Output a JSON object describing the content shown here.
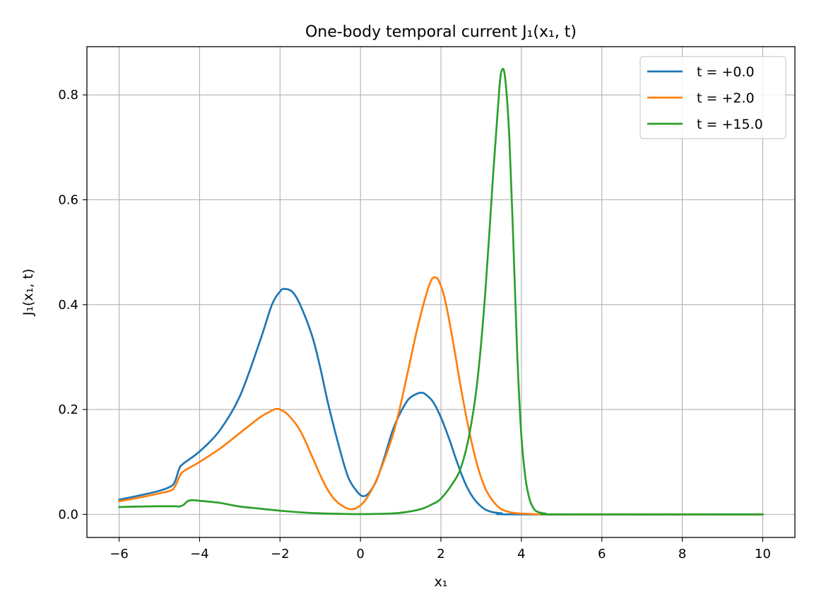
{
  "chart_data": {
    "type": "line",
    "title": "One-body temporal current J₁(x₁, t)",
    "xlabel": "x₁",
    "ylabel": "J₁(x₁, t)",
    "xlim": [
      -6.8,
      10.8
    ],
    "ylim": [
      -0.044,
      0.892
    ],
    "xticks": [
      -6,
      -4,
      -2,
      0,
      2,
      4,
      6,
      8,
      10
    ],
    "xtick_labels": [
      "−6",
      "−4",
      "−2",
      "0",
      "2",
      "4",
      "6",
      "8",
      "10"
    ],
    "yticks": [
      0.0,
      0.2,
      0.4,
      0.6,
      0.8
    ],
    "ytick_labels": [
      "0.0",
      "0.2",
      "0.4",
      "0.6",
      "0.8"
    ],
    "grid": true,
    "legend_position": "top-right",
    "series": [
      {
        "name": "t = +0.0",
        "color": "#1f77b4",
        "points": [
          [
            -6.0,
            0.028
          ],
          [
            -5.5,
            0.036
          ],
          [
            -5.0,
            0.045
          ],
          [
            -4.7,
            0.054
          ],
          [
            -4.6,
            0.065
          ],
          [
            -4.5,
            0.088
          ],
          [
            -4.4,
            0.097
          ],
          [
            -4.0,
            0.12
          ],
          [
            -3.5,
            0.16
          ],
          [
            -3.0,
            0.225
          ],
          [
            -2.5,
            0.33
          ],
          [
            -2.2,
            0.4
          ],
          [
            -2.0,
            0.425
          ],
          [
            -1.9,
            0.43
          ],
          [
            -1.7,
            0.425
          ],
          [
            -1.5,
            0.4
          ],
          [
            -1.2,
            0.34
          ],
          [
            -1.0,
            0.28
          ],
          [
            -0.8,
            0.21
          ],
          [
            -0.5,
            0.12
          ],
          [
            -0.3,
            0.07
          ],
          [
            -0.1,
            0.045
          ],
          [
            0.05,
            0.035
          ],
          [
            0.2,
            0.04
          ],
          [
            0.4,
            0.065
          ],
          [
            0.6,
            0.11
          ],
          [
            0.8,
            0.16
          ],
          [
            1.0,
            0.195
          ],
          [
            1.2,
            0.22
          ],
          [
            1.4,
            0.23
          ],
          [
            1.5,
            0.232
          ],
          [
            1.6,
            0.23
          ],
          [
            1.8,
            0.215
          ],
          [
            2.0,
            0.185
          ],
          [
            2.2,
            0.145
          ],
          [
            2.4,
            0.1
          ],
          [
            2.6,
            0.06
          ],
          [
            2.8,
            0.032
          ],
          [
            3.0,
            0.015
          ],
          [
            3.2,
            0.006
          ],
          [
            3.5,
            0.002
          ],
          [
            4.0,
            0.0
          ],
          [
            10.0,
            0.0
          ]
        ]
      },
      {
        "name": "t = +2.0",
        "color": "#ff7f0e",
        "points": [
          [
            -6.0,
            0.025
          ],
          [
            -5.5,
            0.032
          ],
          [
            -5.0,
            0.04
          ],
          [
            -4.7,
            0.046
          ],
          [
            -4.6,
            0.055
          ],
          [
            -4.5,
            0.072
          ],
          [
            -4.4,
            0.082
          ],
          [
            -4.0,
            0.1
          ],
          [
            -3.5,
            0.125
          ],
          [
            -3.0,
            0.155
          ],
          [
            -2.5,
            0.185
          ],
          [
            -2.2,
            0.198
          ],
          [
            -2.1,
            0.201
          ],
          [
            -2.0,
            0.2
          ],
          [
            -1.8,
            0.19
          ],
          [
            -1.5,
            0.16
          ],
          [
            -1.2,
            0.11
          ],
          [
            -1.0,
            0.075
          ],
          [
            -0.8,
            0.045
          ],
          [
            -0.6,
            0.025
          ],
          [
            -0.4,
            0.014
          ],
          [
            -0.25,
            0.01
          ],
          [
            -0.1,
            0.012
          ],
          [
            0.1,
            0.025
          ],
          [
            0.3,
            0.05
          ],
          [
            0.5,
            0.085
          ],
          [
            0.8,
            0.15
          ],
          [
            1.0,
            0.21
          ],
          [
            1.2,
            0.28
          ],
          [
            1.4,
            0.35
          ],
          [
            1.6,
            0.41
          ],
          [
            1.75,
            0.445
          ],
          [
            1.85,
            0.452
          ],
          [
            1.95,
            0.445
          ],
          [
            2.1,
            0.41
          ],
          [
            2.3,
            0.33
          ],
          [
            2.5,
            0.24
          ],
          [
            2.7,
            0.16
          ],
          [
            2.9,
            0.095
          ],
          [
            3.1,
            0.05
          ],
          [
            3.3,
            0.025
          ],
          [
            3.5,
            0.01
          ],
          [
            3.8,
            0.003
          ],
          [
            4.2,
            0.001
          ],
          [
            5.0,
            0.0
          ],
          [
            10.0,
            0.0
          ]
        ]
      },
      {
        "name": "t = +15.0",
        "color": "#2ca02c",
        "points": [
          [
            -6.0,
            0.014
          ],
          [
            -5.5,
            0.015
          ],
          [
            -5.0,
            0.0155
          ],
          [
            -4.6,
            0.0155
          ],
          [
            -4.5,
            0.015
          ],
          [
            -4.4,
            0.018
          ],
          [
            -4.3,
            0.025
          ],
          [
            -4.2,
            0.027
          ],
          [
            -4.0,
            0.026
          ],
          [
            -3.5,
            0.022
          ],
          [
            -3.0,
            0.015
          ],
          [
            -2.5,
            0.011
          ],
          [
            -2.0,
            0.007
          ],
          [
            -1.5,
            0.004
          ],
          [
            -1.0,
            0.002
          ],
          [
            -0.5,
            0.001
          ],
          [
            0.0,
            0.0005
          ],
          [
            0.5,
            0.001
          ],
          [
            1.0,
            0.003
          ],
          [
            1.5,
            0.01
          ],
          [
            1.8,
            0.02
          ],
          [
            2.0,
            0.03
          ],
          [
            2.3,
            0.06
          ],
          [
            2.5,
            0.09
          ],
          [
            2.7,
            0.15
          ],
          [
            2.9,
            0.25
          ],
          [
            3.1,
            0.42
          ],
          [
            3.3,
            0.65
          ],
          [
            3.45,
            0.81
          ],
          [
            3.52,
            0.848
          ],
          [
            3.6,
            0.83
          ],
          [
            3.7,
            0.72
          ],
          [
            3.8,
            0.52
          ],
          [
            3.9,
            0.3
          ],
          [
            4.0,
            0.15
          ],
          [
            4.1,
            0.07
          ],
          [
            4.2,
            0.03
          ],
          [
            4.3,
            0.012
          ],
          [
            4.4,
            0.005
          ],
          [
            4.6,
            0.0015
          ],
          [
            5.0,
            0.0
          ],
          [
            10.0,
            0.0
          ]
        ]
      }
    ]
  }
}
